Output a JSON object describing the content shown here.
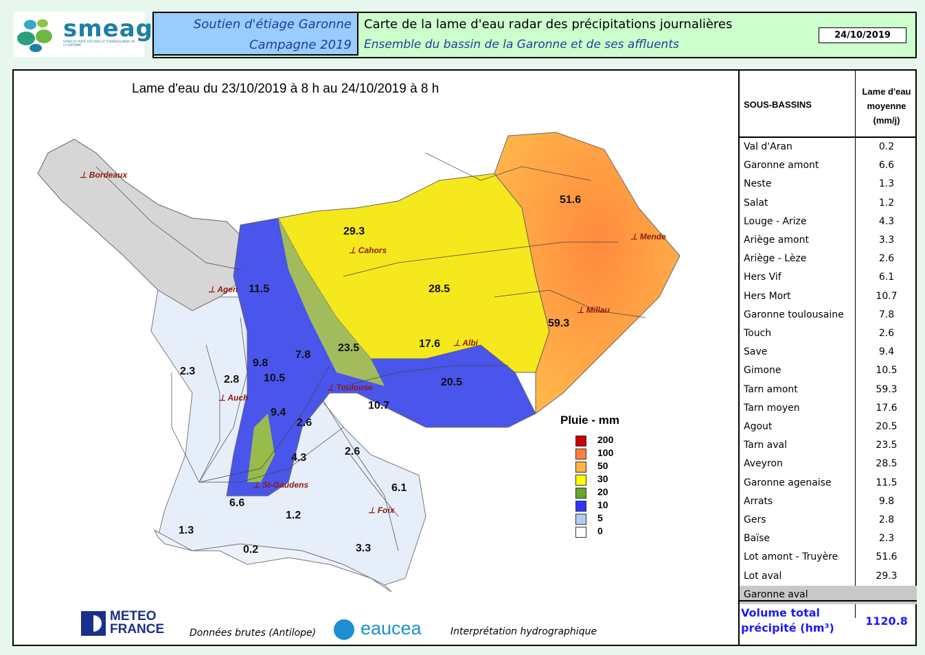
{
  "header": {
    "logo_text": "smeag",
    "logo_subtext": "SYNDICAT MIXTE D'ÉTUDES ET D'AMÉNAGEMENT DE LA GARONNE",
    "left_line1": "Soutien d'étiage Garonne",
    "left_line2": "Campagne 2019",
    "right_line1": "Carte de la lame d'eau radar des précipitations journalières",
    "right_line2": "Ensemble du bassin de la Garonne et de ses affluents",
    "date": "24/10/2019"
  },
  "map": {
    "title": "Lame d'eau du 23/10/2019 à 8 h au 24/10/2019 à 8 h",
    "cities": [
      "Bordeaux",
      "Cahors",
      "Mende",
      "Agen",
      "Millau",
      "Albi",
      "Toulouse",
      "Auch",
      "St-Gaudens",
      "Foix"
    ],
    "values": [
      "51.6",
      "29.3",
      "28.5",
      "11.5",
      "59.3",
      "17.6",
      "23.5",
      "7.8",
      "9.8",
      "2.3",
      "2.8",
      "10.5",
      "20.5",
      "10.7",
      "9.4",
      "2.6",
      "2.6",
      "4.3",
      "6.1",
      "6.6",
      "1.2",
      "1.3",
      "0.2",
      "3.3"
    ]
  },
  "legend": {
    "title": "Pluie - mm",
    "items": [
      {
        "label": "200",
        "color": "#cc0000"
      },
      {
        "label": "100",
        "color": "#ff8040"
      },
      {
        "label": "50",
        "color": "#ffb347"
      },
      {
        "label": "30",
        "color": "#ffff00"
      },
      {
        "label": "20",
        "color": "#66a626"
      },
      {
        "label": "10",
        "color": "#3333ff"
      },
      {
        "label": "5",
        "color": "#b3cdf0"
      },
      {
        "label": "0",
        "color": "#ffffff"
      }
    ]
  },
  "table": {
    "col1": "SOUS-BASSINS",
    "col2_l1": "Lame d'eau",
    "col2_l2": "moyenne",
    "col2_l3": "(mm/j)",
    "rows": [
      {
        "name": "Val d'Aran",
        "value": "0.2"
      },
      {
        "name": "Garonne amont",
        "value": "6.6"
      },
      {
        "name": "Neste",
        "value": "1.3"
      },
      {
        "name": "Salat",
        "value": "1.2"
      },
      {
        "name": "Louge - Arize",
        "value": "4.3"
      },
      {
        "name": "Ariège amont",
        "value": "3.3"
      },
      {
        "name": "Ariège - Lèze",
        "value": "2.6"
      },
      {
        "name": "Hers Vif",
        "value": "6.1"
      },
      {
        "name": "Hers Mort",
        "value": "10.7"
      },
      {
        "name": "Garonne toulousaine",
        "value": "7.8"
      },
      {
        "name": "Touch",
        "value": "2.6"
      },
      {
        "name": "Save",
        "value": "9.4"
      },
      {
        "name": "Gimone",
        "value": "10.5"
      },
      {
        "name": "Tarn amont",
        "value": "59.3"
      },
      {
        "name": "Tarn moyen",
        "value": "17.6"
      },
      {
        "name": "Agout",
        "value": "20.5"
      },
      {
        "name": "Tarn aval",
        "value": "23.5"
      },
      {
        "name": "Aveyron",
        "value": "28.5"
      },
      {
        "name": "Garonne agenaise",
        "value": "11.5"
      },
      {
        "name": "Arrats",
        "value": "9.8"
      },
      {
        "name": "Gers",
        "value": "2.8"
      },
      {
        "name": "Baïse",
        "value": "2.3"
      },
      {
        "name": "Lot amont - Truyère",
        "value": "51.6"
      },
      {
        "name": "Lot aval",
        "value": "29.3"
      },
      {
        "name": "Garonne aval",
        "value": ""
      }
    ],
    "total_label_1": "Volume total",
    "total_label_2": "précipité (hm³)",
    "total_value": "1120.8"
  },
  "footer": {
    "mf_line1": "METEO",
    "mf_line2": "FRANCE",
    "source": "Données brutes (Antilope)",
    "eaucea": "eaucea",
    "interpretation": "Interprétation hydrographique"
  }
}
